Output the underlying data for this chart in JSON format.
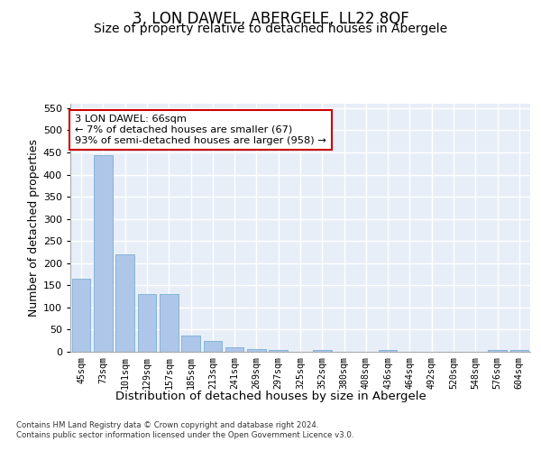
{
  "title": "3, LON DAWEL, ABERGELE, LL22 8QF",
  "subtitle": "Size of property relative to detached houses in Abergele",
  "xlabel": "Distribution of detached houses by size in Abergele",
  "ylabel": "Number of detached properties",
  "categories": [
    "45sqm",
    "73sqm",
    "101sqm",
    "129sqm",
    "157sqm",
    "185sqm",
    "213sqm",
    "241sqm",
    "269sqm",
    "297sqm",
    "325sqm",
    "352sqm",
    "380sqm",
    "408sqm",
    "436sqm",
    "464sqm",
    "492sqm",
    "520sqm",
    "548sqm",
    "576sqm",
    "604sqm"
  ],
  "values": [
    165,
    443,
    220,
    130,
    130,
    37,
    24,
    10,
    6,
    5,
    0,
    5,
    0,
    0,
    5,
    0,
    0,
    0,
    0,
    5,
    5
  ],
  "bar_color": "#aec6e8",
  "bar_edgecolor": "#7aafd4",
  "background_color": "#e8eef8",
  "grid_color": "#ffffff",
  "annotation_text": "3 LON DAWEL: 66sqm\n← 7% of detached houses are smaller (67)\n93% of semi-detached houses are larger (958) →",
  "annotation_box_color": "#ffffff",
  "annotation_box_edgecolor": "#cc0000",
  "ylim": [
    0,
    560
  ],
  "yticks": [
    0,
    50,
    100,
    150,
    200,
    250,
    300,
    350,
    400,
    450,
    500,
    550
  ],
  "footer_text": "Contains HM Land Registry data © Crown copyright and database right 2024.\nContains public sector information licensed under the Open Government Licence v3.0.",
  "title_fontsize": 12,
  "subtitle_fontsize": 10,
  "ylabel_fontsize": 9,
  "xlabel_fontsize": 9.5
}
